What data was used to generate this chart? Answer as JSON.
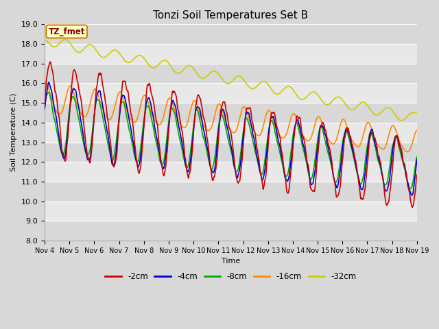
{
  "title": "Tonzi Soil Temperatures Set B",
  "xlabel": "Time",
  "ylabel": "Soil Temperature (C)",
  "ylim": [
    8.0,
    19.0
  ],
  "yticks": [
    8.0,
    9.0,
    10.0,
    11.0,
    12.0,
    13.0,
    14.0,
    15.0,
    16.0,
    17.0,
    18.0,
    19.0
  ],
  "xtick_labels": [
    "Nov 4",
    "Nov 5",
    "Nov 6",
    "Nov 7",
    "Nov 8",
    "Nov 9",
    "Nov 10",
    "Nov 11",
    "Nov 12",
    "Nov 13",
    "Nov 14",
    "Nov 15",
    "Nov 16",
    "Nov 17",
    "Nov 18",
    "Nov 19"
  ],
  "line_colors": {
    "-2cm": "#cc0000",
    "-4cm": "#0000cc",
    "-8cm": "#00aa00",
    "-16cm": "#ff8800",
    "-32cm": "#cccc00"
  },
  "legend_labels": [
    "-2cm",
    "-4cm",
    "-8cm",
    "-16cm",
    "-32cm"
  ],
  "annotation_label": "TZ_fmet",
  "annotation_color": "#8b0000",
  "annotation_bg": "#ffffcc",
  "annotation_edge": "#cc8800",
  "background_color": "#d8d8d8",
  "plot_bg_light": "#e8e8e8",
  "plot_bg_dark": "#d8d8d8"
}
